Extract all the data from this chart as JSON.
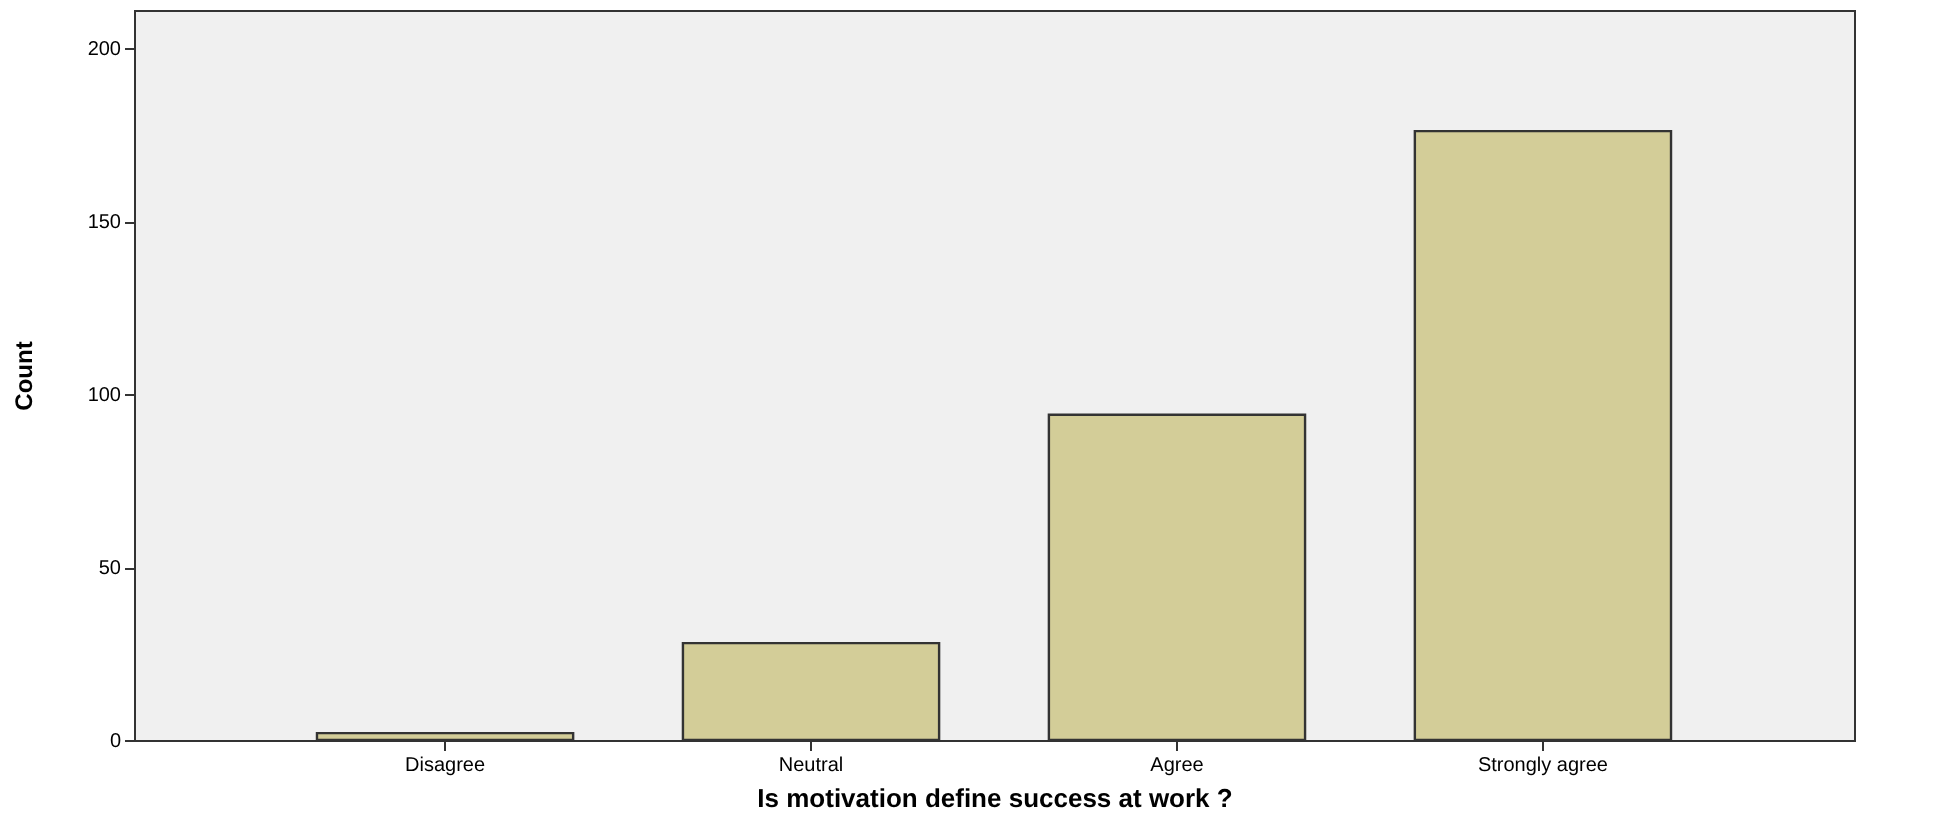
{
  "chart_data": {
    "type": "bar",
    "xlabel": "Is motivation define success at work ?",
    "ylabel": "Count",
    "categories": [
      "Disagree",
      "Neutral",
      "Agree",
      "Strongly agree"
    ],
    "values": [
      2,
      28,
      94,
      176
    ],
    "color": "#d3cd98",
    "ylim": [
      0,
      211
    ],
    "yticks": [
      0,
      50,
      100,
      150,
      200
    ],
    "grid": false
  }
}
